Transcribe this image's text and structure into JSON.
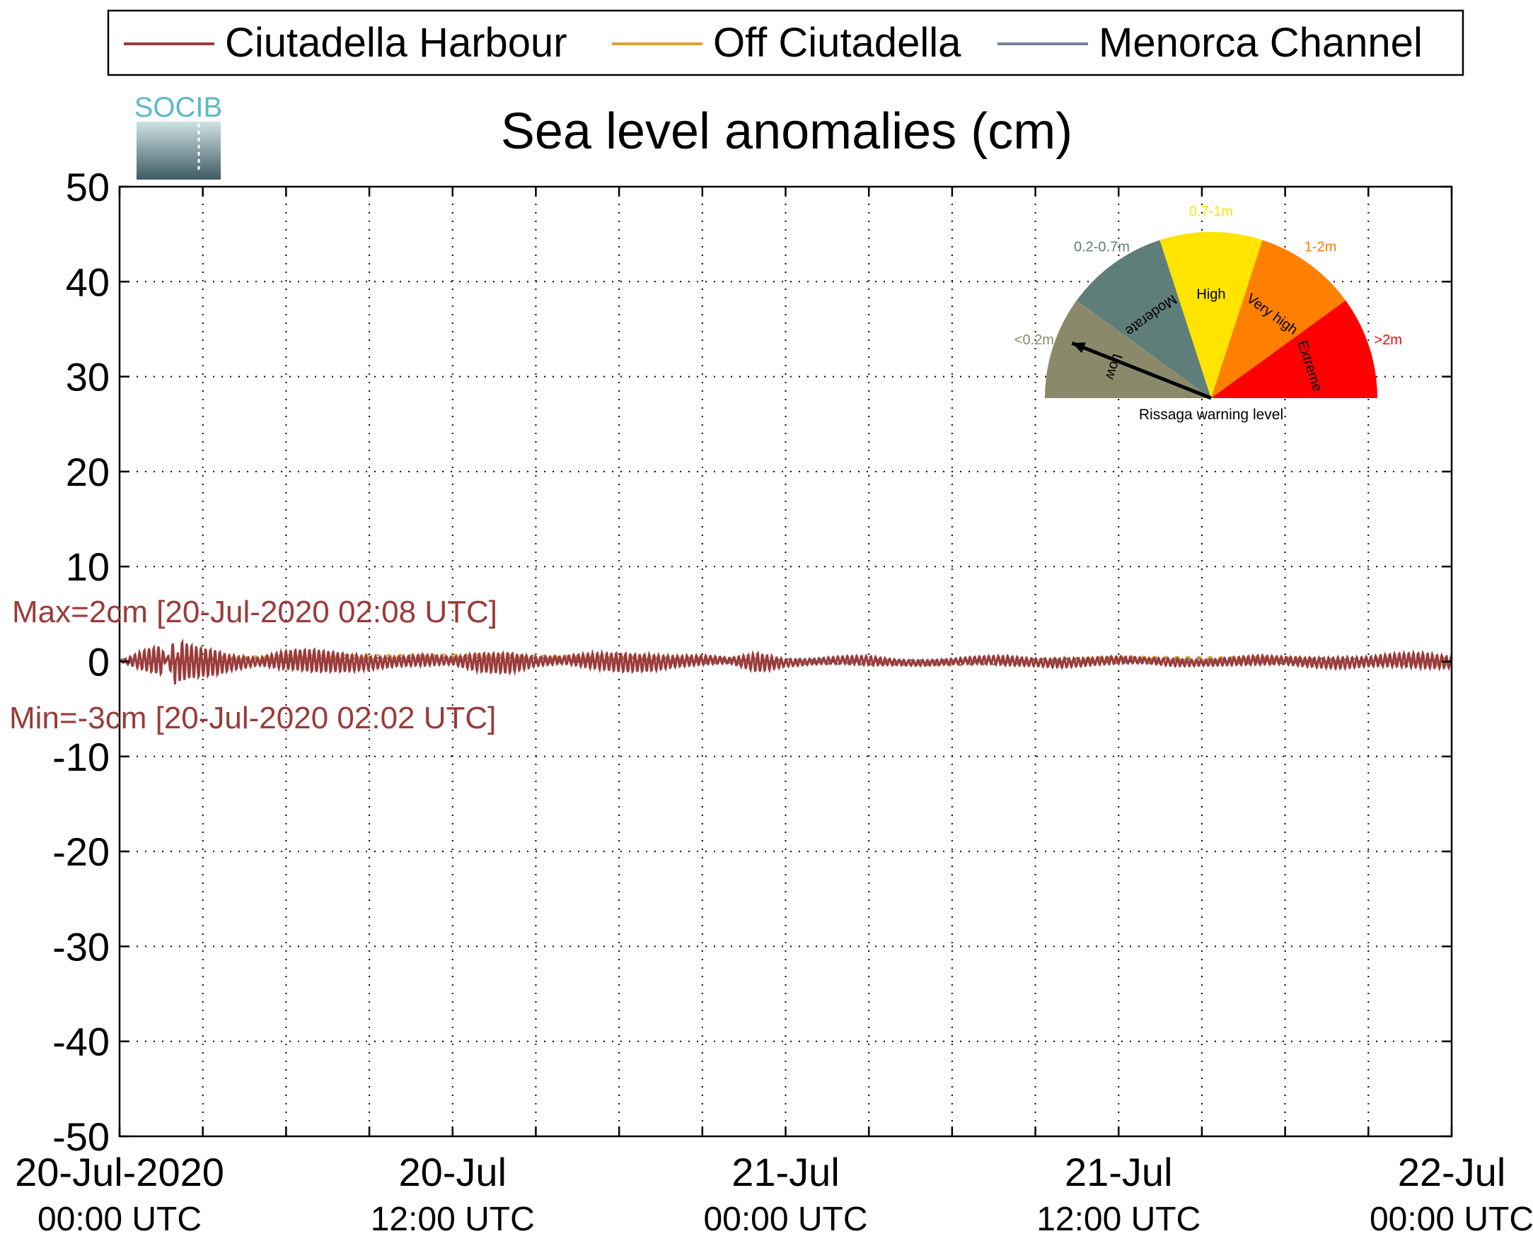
{
  "chart_data": {
    "type": "line",
    "title": "Sea level anomalies (cm)",
    "logo_text": "SOCIB",
    "ylim": [
      -50,
      50
    ],
    "yticks": [
      50,
      40,
      30,
      20,
      10,
      0,
      -10,
      -20,
      -30,
      -40,
      -50
    ],
    "ytick_labels": [
      "50",
      "40",
      "30",
      "20",
      "10",
      "0",
      "-10",
      "-20",
      "-30",
      "-40",
      "-50"
    ],
    "x_range_hours": [
      0,
      48
    ],
    "xtick_hours": [
      0,
      3,
      6,
      9,
      12,
      15,
      18,
      21,
      24,
      27,
      30,
      33,
      36,
      39,
      42,
      45,
      48
    ],
    "x_date_labels": [
      {
        "hour": 0,
        "line1": "20-Jul-2020",
        "line2": "00:00 UTC"
      },
      {
        "hour": 12,
        "line1": "20-Jul",
        "line2": "12:00 UTC"
      },
      {
        "hour": 24,
        "line1": "21-Jul",
        "line2": "00:00 UTC"
      },
      {
        "hour": 36,
        "line1": "21-Jul",
        "line2": "12:00 UTC"
      },
      {
        "hour": 48,
        "line1": "22-Jul",
        "line2": "00:00 UTC"
      }
    ],
    "grid": true,
    "legend_position": "top",
    "series": [
      {
        "name": "Ciutadella Harbour",
        "color": "#9b3a3a",
        "x_hours": [
          0,
          1,
          1.5,
          2,
          2.13,
          2.5,
          3,
          3.5,
          4,
          5,
          6,
          7,
          8,
          9,
          10,
          11,
          12,
          13,
          14,
          15,
          16,
          17,
          18,
          19,
          20,
          21,
          22,
          23,
          24,
          25,
          26,
          27,
          28,
          29,
          30,
          31,
          32,
          33,
          34,
          35,
          36,
          37,
          38,
          39,
          40,
          41,
          42,
          43,
          44,
          45,
          46,
          47,
          48
        ],
        "y": [
          0,
          1.2,
          1.5,
          -2.5,
          2.2,
          1.8,
          1.5,
          1.3,
          0.8,
          0.4,
          1.0,
          1.2,
          1.0,
          0.7,
          0.5,
          0.6,
          0.4,
          1.0,
          1.1,
          0.5,
          0.4,
          0.8,
          1.0,
          0.9,
          0.6,
          0.5,
          0.3,
          1.0,
          0.4,
          0.3,
          0.4,
          0.5,
          0.3,
          0.3,
          0.3,
          0.4,
          0.5,
          0.4,
          0.5,
          0.4,
          0.4,
          0.3,
          0.4,
          0.3,
          0.4,
          0.5,
          0.4,
          0.5,
          0.6,
          0.5,
          0.7,
          0.8,
          0.6
        ],
        "note": "y = oscillation amplitude envelope (cm)"
      },
      {
        "name": "Off Ciutadella",
        "color": "#e0a030",
        "x_hours": [
          0,
          6,
          12,
          18,
          24,
          30,
          36,
          42,
          48
        ],
        "y": [
          0,
          0.4,
          0.5,
          0.3,
          0,
          -0.2,
          0.3,
          0.2,
          -0.2
        ]
      },
      {
        "name": "Menorca Channel",
        "color": "#7a7f9e",
        "x_hours": [
          0,
          6,
          12,
          18,
          24,
          30,
          36,
          42,
          48
        ],
        "y": [
          0,
          0.1,
          0.2,
          0.1,
          0,
          -0.1,
          0.1,
          0.0,
          0.1
        ]
      }
    ],
    "annotations": {
      "max_text": "Max=2cm [20-Jul-2020 02:08 UTC]",
      "min_text": "Min=-3cm [20-Jul-2020 02:02 UTC]",
      "color": "#9b3a3a"
    },
    "gauge": {
      "caption": "Rissaga warning level",
      "needle_level": "Low",
      "needle_fraction": 0.12,
      "segments": [
        {
          "label": "Low",
          "range": "<0.2m",
          "color": "#8a8a6a"
        },
        {
          "label": "Moderate",
          "range": "0.2-0.7m",
          "color": "#5f7e7a"
        },
        {
          "label": "High",
          "range": "0.7-1m",
          "color": "#ffe400"
        },
        {
          "label": "Very high",
          "range": "1-2m",
          "color": "#ff8000"
        },
        {
          "label": "Extreme",
          "range": ">2m",
          "color": "#ff0000"
        }
      ]
    }
  }
}
